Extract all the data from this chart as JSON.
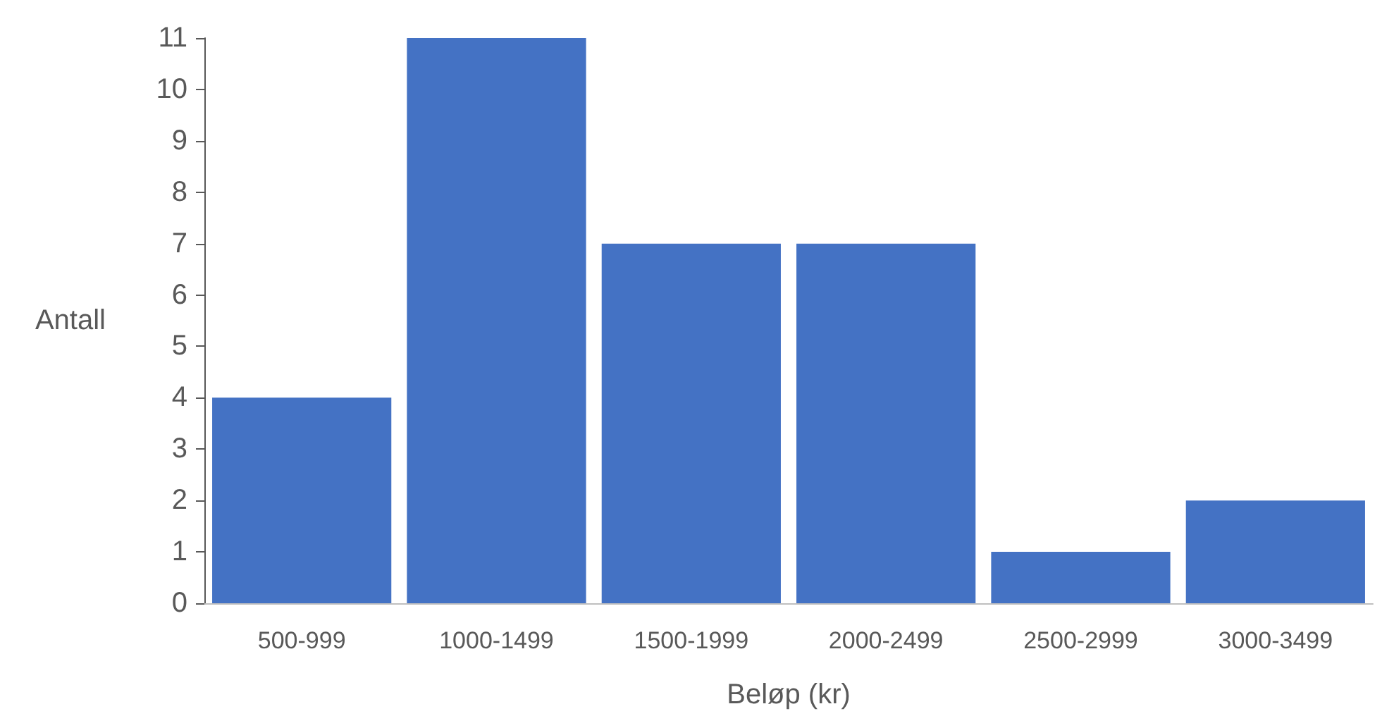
{
  "chart_data": {
    "type": "bar",
    "xlabel": "Beløp (kr)",
    "ylabel": "Antall",
    "categories": [
      "500-999",
      "1000-1499",
      "1500-1999",
      "2000-2499",
      "2500-2999",
      "3000-3499"
    ],
    "values": [
      4,
      11,
      7,
      7,
      1,
      2
    ],
    "color": "#4472c4",
    "ylim": [
      0,
      11
    ],
    "yticks": [
      0,
      1,
      2,
      3,
      4,
      5,
      6,
      7,
      8,
      9,
      10,
      11
    ],
    "grid": false
  }
}
